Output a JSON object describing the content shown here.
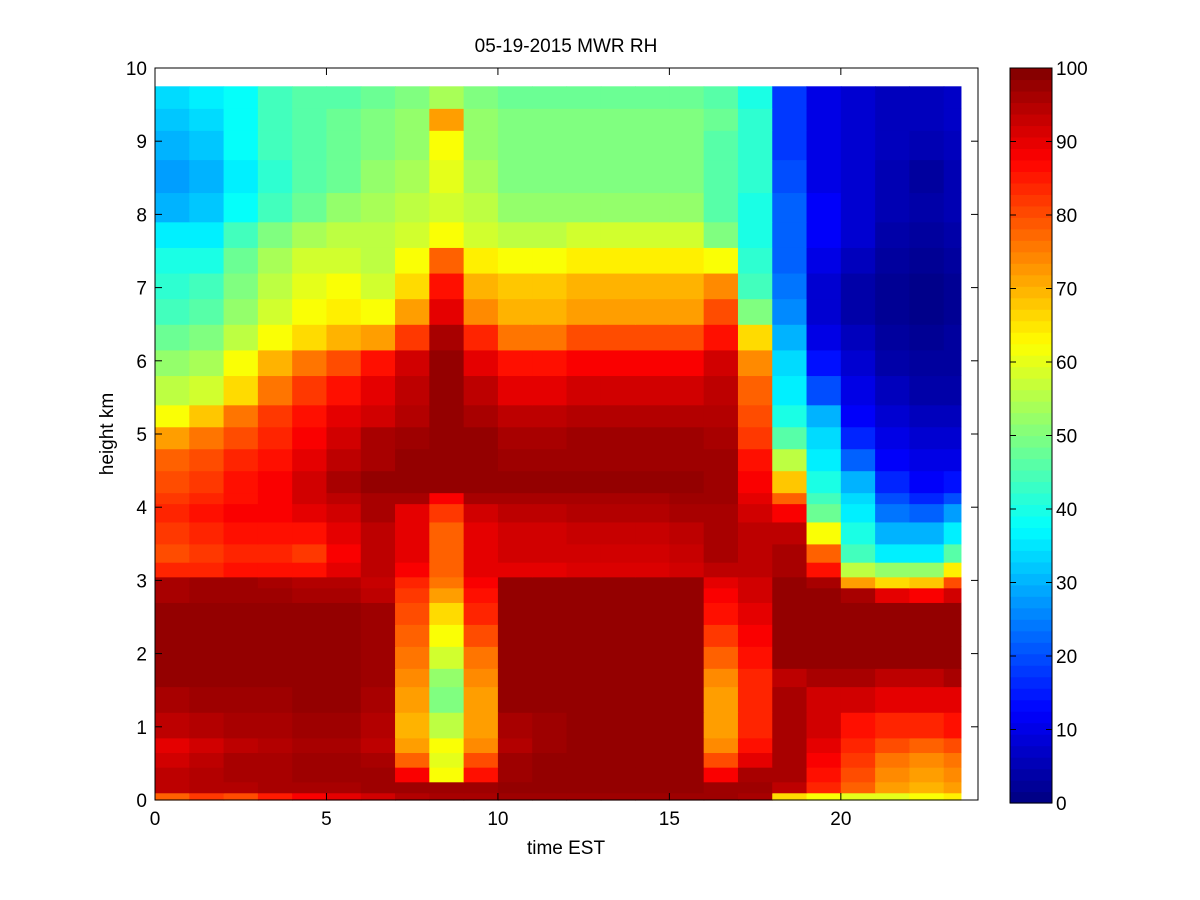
{
  "chart_data": {
    "type": "heatmap",
    "title": "05-19-2015 MWR RH",
    "xlabel": "time EST",
    "ylabel": "height km",
    "xlim": [
      0,
      24
    ],
    "ylim": [
      0,
      10
    ],
    "xticks": [
      0,
      5,
      10,
      15,
      20
    ],
    "yticks": [
      0,
      1,
      2,
      3,
      4,
      5,
      6,
      7,
      8,
      9,
      10
    ],
    "colorbar": {
      "min": 0,
      "max": 100,
      "ticks": [
        0,
        10,
        20,
        30,
        40,
        50,
        60,
        70,
        80,
        90,
        100
      ],
      "colormap": "jet",
      "placement": "right"
    },
    "grid": false,
    "x": [
      0,
      1,
      2,
      3,
      4,
      5,
      6,
      7,
      8,
      9,
      10,
      11,
      12,
      13,
      14,
      15,
      16,
      17,
      18,
      19,
      20,
      21,
      22,
      23
    ],
    "x_edges": [
      0,
      1,
      2,
      3,
      4,
      5,
      6,
      7,
      8,
      9,
      10,
      11,
      12,
      13,
      14,
      15,
      16,
      17,
      18,
      19,
      20,
      21,
      22,
      23,
      23.5
    ],
    "rows": [
      {
        "y0": 0.0,
        "y1": 0.1,
        "values": [
          78,
          82,
          80,
          85,
          88,
          90,
          92,
          95,
          96,
          96,
          97,
          97,
          97,
          97,
          97,
          97,
          97,
          96,
          66,
          62,
          60,
          60,
          62,
          64
        ]
      },
      {
        "y0": 0.1,
        "y1": 0.25,
        "values": [
          94,
          95,
          95,
          96,
          96,
          96,
          97,
          97,
          97,
          97,
          98,
          98,
          98,
          98,
          98,
          98,
          97,
          97,
          94,
          84,
          78,
          72,
          70,
          72
        ]
      },
      {
        "y0": 0.25,
        "y1": 0.45,
        "values": [
          94,
          95,
          96,
          96,
          97,
          97,
          97,
          88,
          62,
          86,
          97,
          98,
          98,
          98,
          98,
          98,
          88,
          96,
          96,
          86,
          80,
          74,
          72,
          74
        ]
      },
      {
        "y0": 0.45,
        "y1": 0.65,
        "values": [
          92,
          94,
          96,
          96,
          97,
          97,
          96,
          78,
          60,
          80,
          97,
          98,
          98,
          98,
          98,
          98,
          80,
          90,
          96,
          88,
          82,
          76,
          74,
          76
        ]
      },
      {
        "y0": 0.65,
        "y1": 0.85,
        "values": [
          90,
          92,
          94,
          95,
          96,
          96,
          94,
          72,
          62,
          74,
          95,
          97,
          98,
          98,
          98,
          98,
          74,
          86,
          96,
          90,
          84,
          80,
          78,
          80
        ]
      },
      {
        "y0": 0.85,
        "y1": 1.2,
        "values": [
          94,
          95,
          96,
          96,
          97,
          97,
          95,
          70,
          56,
          72,
          96,
          97,
          98,
          98,
          98,
          98,
          72,
          84,
          96,
          92,
          86,
          84,
          84,
          86
        ]
      },
      {
        "y0": 1.2,
        "y1": 1.55,
        "values": [
          96,
          97,
          97,
          97,
          98,
          98,
          96,
          72,
          50,
          72,
          98,
          98,
          98,
          98,
          98,
          98,
          72,
          84,
          96,
          92,
          92,
          90,
          90,
          90
        ]
      },
      {
        "y0": 1.55,
        "y1": 1.8,
        "values": [
          98,
          98,
          98,
          98,
          98,
          98,
          97,
          74,
          52,
          74,
          98,
          98,
          98,
          98,
          98,
          98,
          74,
          84,
          94,
          96,
          96,
          94,
          94,
          96
        ]
      },
      {
        "y0": 1.8,
        "y1": 2.1,
        "values": [
          98,
          98,
          98,
          98,
          98,
          98,
          97,
          76,
          58,
          76,
          98,
          98,
          98,
          98,
          98,
          98,
          78,
          86,
          98,
          98,
          98,
          98,
          98,
          98
        ]
      },
      {
        "y0": 2.1,
        "y1": 2.4,
        "values": [
          98,
          98,
          98,
          98,
          98,
          98,
          97,
          78,
          62,
          80,
          98,
          98,
          98,
          98,
          98,
          98,
          82,
          88,
          98,
          98,
          98,
          98,
          98,
          98
        ]
      },
      {
        "y0": 2.4,
        "y1": 2.7,
        "values": [
          98,
          98,
          98,
          98,
          98,
          98,
          97,
          80,
          66,
          84,
          98,
          98,
          98,
          98,
          98,
          98,
          86,
          90,
          98,
          98,
          98,
          98,
          98,
          98
        ]
      },
      {
        "y0": 2.7,
        "y1": 2.9,
        "values": [
          96,
          97,
          97,
          97,
          96,
          96,
          94,
          82,
          72,
          86,
          98,
          98,
          98,
          98,
          98,
          98,
          88,
          92,
          98,
          98,
          96,
          90,
          88,
          92
        ]
      },
      {
        "y0": 2.9,
        "y1": 3.05,
        "values": [
          96,
          97,
          97,
          96,
          95,
          95,
          93,
          84,
          76,
          88,
          98,
          98,
          98,
          98,
          98,
          98,
          90,
          92,
          98,
          96,
          72,
          66,
          68,
          80
        ]
      },
      {
        "y0": 3.05,
        "y1": 3.25,
        "values": [
          84,
          84,
          86,
          86,
          86,
          90,
          94,
          88,
          78,
          90,
          90,
          90,
          91,
          91,
          91,
          92,
          94,
          94,
          96,
          86,
          56,
          52,
          52,
          64
        ]
      },
      {
        "y0": 3.25,
        "y1": 3.5,
        "values": [
          80,
          82,
          84,
          84,
          82,
          88,
          94,
          90,
          78,
          90,
          92,
          92,
          92,
          92,
          92,
          93,
          96,
          94,
          96,
          78,
          44,
          36,
          36,
          46
        ]
      },
      {
        "y0": 3.5,
        "y1": 3.8,
        "values": [
          82,
          84,
          86,
          86,
          86,
          90,
          94,
          90,
          78,
          90,
          92,
          92,
          93,
          93,
          93,
          94,
          96,
          94,
          94,
          62,
          40,
          30,
          30,
          36
        ]
      },
      {
        "y0": 3.8,
        "y1": 4.05,
        "values": [
          84,
          86,
          88,
          88,
          90,
          92,
          96,
          90,
          82,
          92,
          94,
          94,
          95,
          95,
          95,
          96,
          96,
          92,
          88,
          48,
          36,
          24,
          22,
          28
        ]
      },
      {
        "y0": 4.05,
        "y1": 4.2,
        "values": [
          82,
          84,
          86,
          88,
          92,
          94,
          96,
          96,
          88,
          96,
          96,
          96,
          96,
          96,
          96,
          97,
          97,
          90,
          78,
          44,
          34,
          20,
          16,
          20
        ]
      },
      {
        "y0": 4.2,
        "y1": 4.5,
        "values": [
          80,
          82,
          86,
          88,
          92,
          96,
          98,
          98,
          98,
          98,
          98,
          98,
          98,
          98,
          98,
          98,
          97,
          88,
          68,
          40,
          30,
          16,
          12,
          14
        ]
      },
      {
        "y0": 4.5,
        "y1": 4.8,
        "values": [
          78,
          80,
          84,
          86,
          90,
          94,
          96,
          98,
          98,
          98,
          97,
          97,
          97,
          97,
          97,
          97,
          97,
          86,
          56,
          36,
          22,
          12,
          10,
          10
        ]
      },
      {
        "y0": 4.8,
        "y1": 5.1,
        "values": [
          72,
          76,
          80,
          84,
          88,
          92,
          96,
          97,
          98,
          98,
          96,
          96,
          97,
          97,
          97,
          97,
          96,
          82,
          46,
          34,
          16,
          10,
          8,
          8
        ]
      },
      {
        "y0": 5.1,
        "y1": 5.4,
        "values": [
          62,
          68,
          76,
          82,
          86,
          90,
          92,
          95,
          98,
          96,
          94,
          94,
          95,
          95,
          95,
          95,
          95,
          80,
          40,
          30,
          12,
          8,
          6,
          6
        ]
      },
      {
        "y0": 5.4,
        "y1": 5.8,
        "values": [
          56,
          58,
          66,
          76,
          82,
          86,
          90,
          94,
          98,
          94,
          90,
          90,
          92,
          92,
          92,
          92,
          94,
          78,
          36,
          20,
          10,
          6,
          4,
          4
        ]
      },
      {
        "y0": 5.8,
        "y1": 6.15,
        "values": [
          52,
          54,
          62,
          70,
          76,
          80,
          86,
          92,
          98,
          90,
          86,
          86,
          88,
          88,
          88,
          88,
          92,
          74,
          34,
          14,
          8,
          4,
          3,
          3
        ]
      },
      {
        "y0": 6.15,
        "y1": 6.5,
        "values": [
          48,
          50,
          56,
          62,
          66,
          70,
          72,
          82,
          96,
          84,
          76,
          76,
          80,
          80,
          80,
          80,
          86,
          66,
          30,
          10,
          6,
          3,
          2,
          3
        ]
      },
      {
        "y0": 6.5,
        "y1": 6.85,
        "values": [
          44,
          46,
          52,
          58,
          62,
          64,
          62,
          72,
          90,
          74,
          70,
          70,
          72,
          72,
          72,
          72,
          80,
          50,
          26,
          8,
          4,
          2,
          1,
          2
        ]
      },
      {
        "y0": 6.85,
        "y1": 7.2,
        "values": [
          42,
          44,
          50,
          56,
          60,
          62,
          58,
          66,
          86,
          70,
          68,
          68,
          70,
          70,
          70,
          70,
          74,
          44,
          24,
          8,
          4,
          2,
          1,
          2
        ]
      },
      {
        "y0": 7.2,
        "y1": 7.55,
        "values": [
          40,
          40,
          48,
          54,
          58,
          58,
          56,
          62,
          78,
          64,
          62,
          62,
          64,
          64,
          64,
          64,
          62,
          42,
          22,
          10,
          6,
          3,
          2,
          3
        ]
      },
      {
        "y0": 7.55,
        "y1": 7.9,
        "values": [
          36,
          36,
          44,
          50,
          54,
          56,
          56,
          58,
          62,
          58,
          56,
          56,
          58,
          58,
          58,
          58,
          50,
          40,
          22,
          12,
          8,
          4,
          3,
          4
        ]
      },
      {
        "y0": 7.9,
        "y1": 8.3,
        "values": [
          30,
          32,
          38,
          44,
          48,
          52,
          54,
          56,
          58,
          56,
          52,
          52,
          52,
          52,
          52,
          52,
          46,
          40,
          22,
          12,
          8,
          5,
          4,
          5
        ]
      },
      {
        "y0": 8.3,
        "y1": 8.75,
        "values": [
          28,
          30,
          36,
          42,
          46,
          48,
          52,
          54,
          60,
          54,
          50,
          50,
          50,
          50,
          50,
          50,
          46,
          42,
          20,
          10,
          8,
          5,
          3,
          5
        ]
      },
      {
        "y0": 8.75,
        "y1": 9.15,
        "values": [
          30,
          32,
          38,
          44,
          46,
          48,
          50,
          52,
          62,
          52,
          50,
          50,
          50,
          50,
          50,
          50,
          46,
          42,
          18,
          10,
          8,
          6,
          5,
          6
        ]
      },
      {
        "y0": 9.15,
        "y1": 9.45,
        "values": [
          32,
          34,
          38,
          44,
          46,
          48,
          50,
          52,
          72,
          52,
          50,
          50,
          50,
          50,
          50,
          50,
          48,
          42,
          18,
          10,
          8,
          6,
          6,
          7
        ]
      },
      {
        "y0": 9.45,
        "y1": 9.75,
        "values": [
          34,
          36,
          38,
          44,
          46,
          46,
          48,
          50,
          54,
          50,
          48,
          48,
          48,
          48,
          48,
          48,
          46,
          40,
          18,
          10,
          8,
          6,
          6,
          7
        ]
      }
    ]
  }
}
